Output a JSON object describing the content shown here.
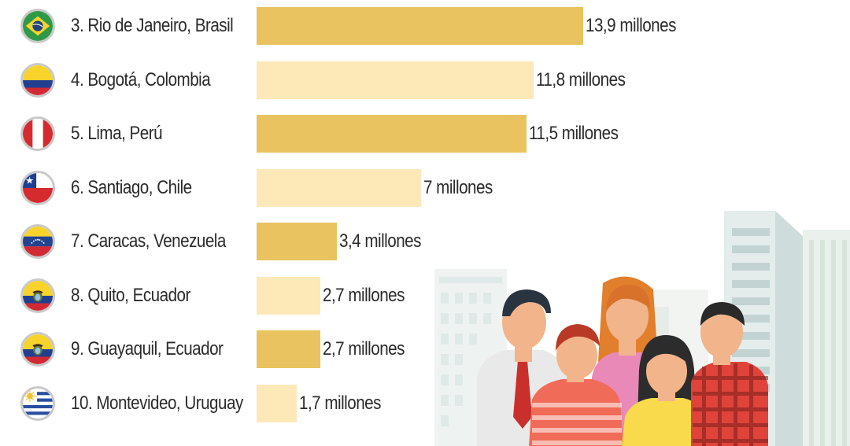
{
  "chart_data": {
    "type": "bar",
    "orientation": "horizontal",
    "unit": "millones",
    "categories": [
      "3. Rio de Janeiro, Brasil",
      "4. Bogotá, Colombia",
      "5. Lima, Perú",
      "6. Santiago, Chile",
      "7. Caracas, Venezuela",
      "8. Quito, Ecuador",
      "9. Guayaquil, Ecuador",
      "10. Montevideo, Uruguay"
    ],
    "values": [
      13.9,
      11.8,
      11.5,
      7,
      3.4,
      2.7,
      2.7,
      1.7
    ],
    "value_labels": [
      "13,9 millones",
      "11,8 millones",
      "11,5 millones",
      "7 millones",
      "3,4 millones",
      "2,7 millones",
      "2,7 millones",
      "1,7 millones"
    ],
    "flags": [
      "brazil-flag-icon",
      "colombia-flag-icon",
      "peru-flag-icon",
      "chile-flag-icon",
      "venezuela-flag-icon",
      "ecuador-flag-icon",
      "ecuador-flag-icon",
      "uruguay-flag-icon"
    ],
    "bar_colors": [
      "#e8c35f",
      "#fde8b8"
    ],
    "title": "",
    "xlabel": "",
    "ylabel": ""
  },
  "illustration": "people-city-illustration"
}
